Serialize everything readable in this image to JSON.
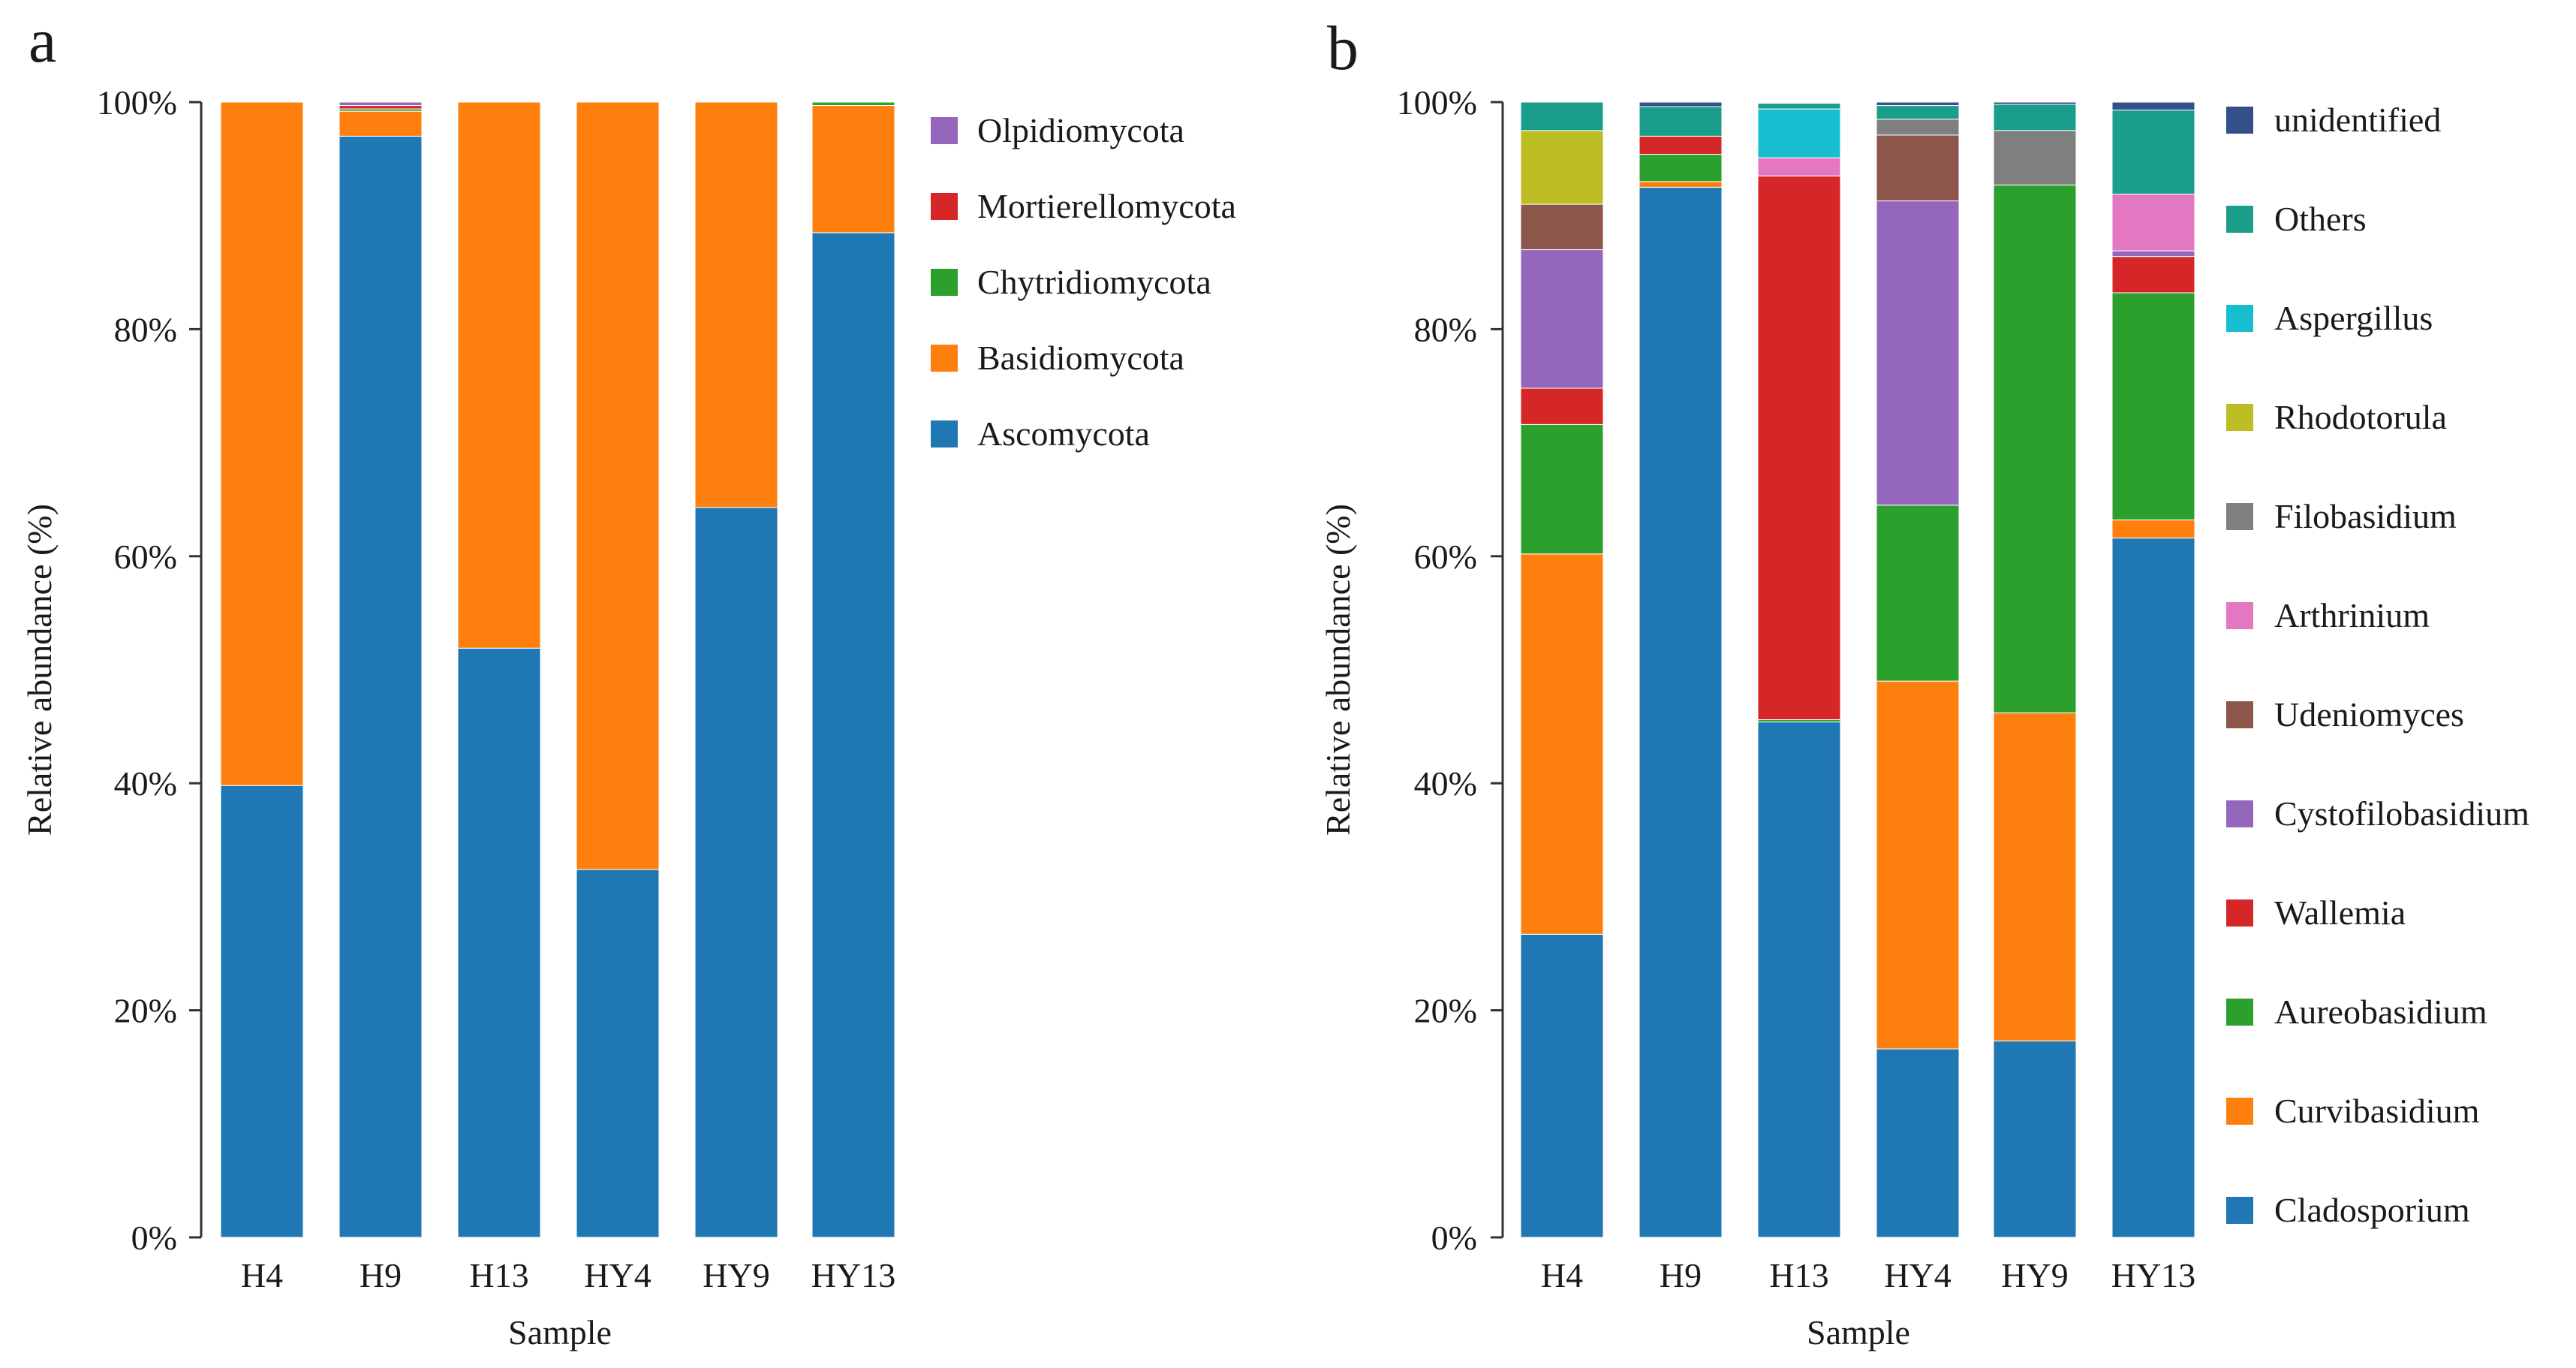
{
  "chart_data": [
    {
      "panel": "a",
      "type": "bar",
      "stacked": true,
      "xlabel": "Sample",
      "ylabel": "Relative abundance (%)",
      "ylim": [
        0,
        100
      ],
      "yticks": [
        "0%",
        "20%",
        "40%",
        "60%",
        "80%",
        "100%"
      ],
      "categories": [
        "H4",
        "H9",
        "H13",
        "HY4",
        "HY9",
        "HY13"
      ],
      "series": [
        {
          "name": "Ascomycota",
          "color": "#1f77b4",
          "values": [
            39.8,
            97.0,
            51.9,
            32.4,
            64.3,
            88.5
          ]
        },
        {
          "name": "Basidiomycota",
          "color": "#ff7f0e",
          "values": [
            60.2,
            2.2,
            48.1,
            67.6,
            35.7,
            11.2
          ]
        },
        {
          "name": "Chytridiomycota",
          "color": "#2ca02c",
          "values": [
            0.0,
            0.2,
            0.0,
            0.0,
            0.0,
            0.3
          ]
        },
        {
          "name": "Mortierellomycota",
          "color": "#d62728",
          "values": [
            0.0,
            0.3,
            0.0,
            0.0,
            0.0,
            0.0
          ]
        },
        {
          "name": "Olpidiomycota",
          "color": "#9467bd",
          "values": [
            0.0,
            0.3,
            0.0,
            0.0,
            0.0,
            0.0
          ]
        }
      ]
    },
    {
      "panel": "b",
      "type": "bar",
      "stacked": true,
      "xlabel": "Sample",
      "ylabel": "Relative abundance (%)",
      "ylim": [
        0,
        100
      ],
      "yticks": [
        "0%",
        "20%",
        "40%",
        "60%",
        "80%",
        "100%"
      ],
      "categories": [
        "H4",
        "H9",
        "H13",
        "HY4",
        "HY9",
        "HY13"
      ],
      "series": [
        {
          "name": "Cladosporium",
          "color": "#1f77b4",
          "values": [
            26.7,
            92.5,
            45.4,
            16.6,
            17.3,
            61.6
          ]
        },
        {
          "name": "Curvibasidium",
          "color": "#ff7f0e",
          "values": [
            33.5,
            0.5,
            0.0,
            32.4,
            28.9,
            1.6
          ]
        },
        {
          "name": "Aureobasidium",
          "color": "#2ca02c",
          "values": [
            11.4,
            2.4,
            0.2,
            15.5,
            46.5,
            20.0
          ]
        },
        {
          "name": "Wallemia",
          "color": "#d62728",
          "values": [
            3.2,
            1.6,
            47.9,
            0.0,
            0.0,
            3.2
          ]
        },
        {
          "name": "Cystofilobasidium",
          "color": "#9467bd",
          "values": [
            12.2,
            0.0,
            0.0,
            26.8,
            0.0,
            0.5
          ]
        },
        {
          "name": "Udeniomyces",
          "color": "#8c564b",
          "values": [
            4.0,
            0.0,
            0.0,
            5.8,
            0.0,
            0.0
          ]
        },
        {
          "name": "Arthrinium",
          "color": "#e377c2",
          "values": [
            0.0,
            0.0,
            1.6,
            0.0,
            0.0,
            5.0
          ]
        },
        {
          "name": "Filobasidium",
          "color": "#7f7f7f",
          "values": [
            0.0,
            0.0,
            0.0,
            1.4,
            4.8,
            0.0
          ]
        },
        {
          "name": "Rhodotorula",
          "color": "#bcbd22",
          "values": [
            6.5,
            0.0,
            0.0,
            0.0,
            0.0,
            0.0
          ]
        },
        {
          "name": "Aspergillus",
          "color": "#17becf",
          "values": [
            0.0,
            0.0,
            4.3,
            0.0,
            0.0,
            0.0
          ]
        },
        {
          "name": "Others",
          "color": "#1a9e8a",
          "values": [
            2.5,
            2.6,
            0.5,
            1.2,
            2.3,
            7.4
          ]
        },
        {
          "name": "unidentified",
          "color": "#34508a",
          "values": [
            0.0,
            0.4,
            0.0,
            0.3,
            0.2,
            0.7
          ]
        }
      ]
    }
  ]
}
